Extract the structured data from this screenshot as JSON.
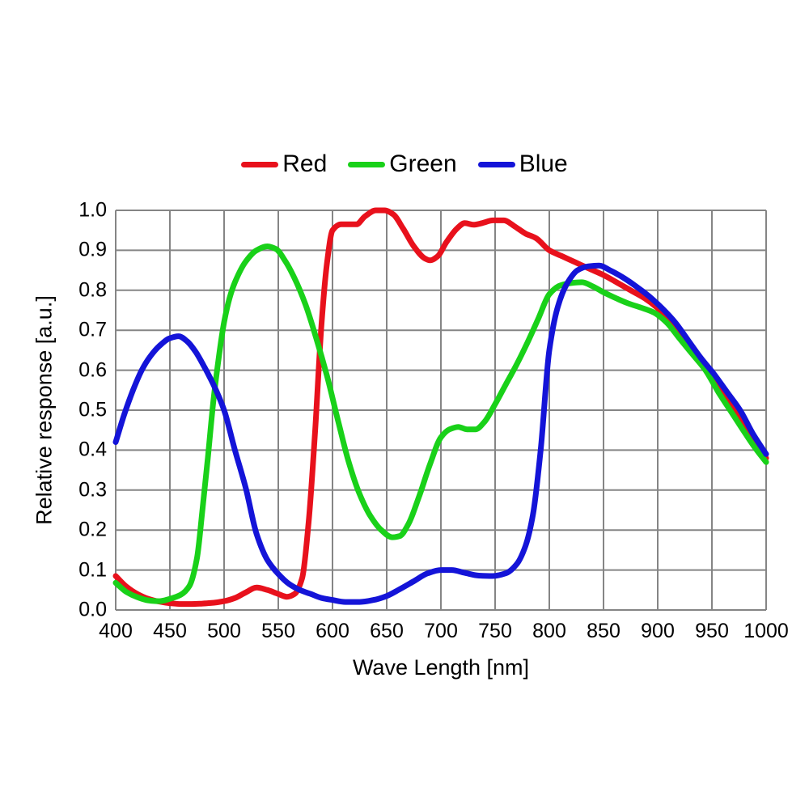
{
  "chart_data": {
    "type": "line",
    "title": "",
    "xlabel": "Wave Length [nm]",
    "ylabel": "Relative response [a.u.]",
    "xlim": [
      400,
      1000
    ],
    "ylim": [
      0.0,
      1.0
    ],
    "x_ticks": [
      400,
      450,
      500,
      550,
      600,
      650,
      700,
      750,
      800,
      850,
      900,
      950,
      1000
    ],
    "y_ticks": [
      "0.0",
      "0.1",
      "0.2",
      "0.3",
      "0.4",
      "0.5",
      "0.6",
      "0.7",
      "0.8",
      "0.9",
      "1.0"
    ],
    "grid": true,
    "grid_color": "#858585",
    "background_color": "#ffffff",
    "text_color": "#000000",
    "legend_position": "top-center",
    "series": [
      {
        "name": "Red",
        "color": "#e8111c",
        "points": [
          [
            400,
            0.085
          ],
          [
            410,
            0.058
          ],
          [
            420,
            0.04
          ],
          [
            430,
            0.028
          ],
          [
            440,
            0.021
          ],
          [
            450,
            0.017
          ],
          [
            460,
            0.015
          ],
          [
            470,
            0.015
          ],
          [
            480,
            0.016
          ],
          [
            490,
            0.018
          ],
          [
            500,
            0.022
          ],
          [
            510,
            0.03
          ],
          [
            520,
            0.044
          ],
          [
            530,
            0.056
          ],
          [
            540,
            0.05
          ],
          [
            550,
            0.04
          ],
          [
            558,
            0.033
          ],
          [
            565,
            0.04
          ],
          [
            572,
            0.08
          ],
          [
            578,
            0.22
          ],
          [
            584,
            0.45
          ],
          [
            590,
            0.72
          ],
          [
            595,
            0.87
          ],
          [
            600,
            0.95
          ],
          [
            608,
            0.965
          ],
          [
            615,
            0.965
          ],
          [
            622,
            0.965
          ],
          [
            630,
            0.985
          ],
          [
            640,
            1.0
          ],
          [
            648,
            1.0
          ],
          [
            656,
            0.99
          ],
          [
            665,
            0.955
          ],
          [
            675,
            0.91
          ],
          [
            685,
            0.88
          ],
          [
            690,
            0.875
          ],
          [
            697,
            0.885
          ],
          [
            705,
            0.92
          ],
          [
            715,
            0.955
          ],
          [
            722,
            0.968
          ],
          [
            730,
            0.964
          ],
          [
            738,
            0.968
          ],
          [
            748,
            0.975
          ],
          [
            758,
            0.975
          ],
          [
            768,
            0.96
          ],
          [
            778,
            0.942
          ],
          [
            788,
            0.93
          ],
          [
            800,
            0.9
          ],
          [
            812,
            0.885
          ],
          [
            824,
            0.87
          ],
          [
            836,
            0.855
          ],
          [
            850,
            0.838
          ],
          [
            862,
            0.82
          ],
          [
            875,
            0.8
          ],
          [
            888,
            0.78
          ],
          [
            900,
            0.755
          ],
          [
            912,
            0.72
          ],
          [
            925,
            0.675
          ],
          [
            938,
            0.625
          ],
          [
            950,
            0.585
          ],
          [
            962,
            0.54
          ],
          [
            975,
            0.49
          ],
          [
            988,
            0.43
          ],
          [
            1000,
            0.38
          ]
        ]
      },
      {
        "name": "Green",
        "color": "#19d119",
        "points": [
          [
            400,
            0.068
          ],
          [
            410,
            0.045
          ],
          [
            420,
            0.032
          ],
          [
            430,
            0.024
          ],
          [
            440,
            0.022
          ],
          [
            450,
            0.028
          ],
          [
            460,
            0.038
          ],
          [
            468,
            0.06
          ],
          [
            475,
            0.13
          ],
          [
            480,
            0.25
          ],
          [
            485,
            0.38
          ],
          [
            490,
            0.52
          ],
          [
            495,
            0.63
          ],
          [
            500,
            0.72
          ],
          [
            505,
            0.78
          ],
          [
            510,
            0.82
          ],
          [
            520,
            0.872
          ],
          [
            530,
            0.9
          ],
          [
            540,
            0.91
          ],
          [
            548,
            0.903
          ],
          [
            556,
            0.875
          ],
          [
            565,
            0.83
          ],
          [
            575,
            0.765
          ],
          [
            585,
            0.68
          ],
          [
            595,
            0.585
          ],
          [
            605,
            0.475
          ],
          [
            615,
            0.37
          ],
          [
            625,
            0.29
          ],
          [
            635,
            0.235
          ],
          [
            645,
            0.2
          ],
          [
            655,
            0.182
          ],
          [
            662,
            0.185
          ],
          [
            670,
            0.215
          ],
          [
            680,
            0.285
          ],
          [
            690,
            0.365
          ],
          [
            700,
            0.432
          ],
          [
            708,
            0.452
          ],
          [
            716,
            0.458
          ],
          [
            724,
            0.452
          ],
          [
            732,
            0.452
          ],
          [
            740,
            0.47
          ],
          [
            750,
            0.515
          ],
          [
            760,
            0.565
          ],
          [
            770,
            0.615
          ],
          [
            780,
            0.67
          ],
          [
            790,
            0.73
          ],
          [
            800,
            0.79
          ],
          [
            810,
            0.812
          ],
          [
            820,
            0.818
          ],
          [
            830,
            0.82
          ],
          [
            840,
            0.81
          ],
          [
            850,
            0.795
          ],
          [
            860,
            0.782
          ],
          [
            872,
            0.768
          ],
          [
            884,
            0.757
          ],
          [
            896,
            0.745
          ],
          [
            908,
            0.72
          ],
          [
            920,
            0.68
          ],
          [
            932,
            0.64
          ],
          [
            944,
            0.6
          ],
          [
            956,
            0.545
          ],
          [
            968,
            0.495
          ],
          [
            980,
            0.445
          ],
          [
            990,
            0.405
          ],
          [
            1000,
            0.37
          ]
        ]
      },
      {
        "name": "Blue",
        "color": "#1414d8",
        "points": [
          [
            400,
            0.42
          ],
          [
            408,
            0.49
          ],
          [
            416,
            0.55
          ],
          [
            424,
            0.6
          ],
          [
            432,
            0.635
          ],
          [
            440,
            0.66
          ],
          [
            450,
            0.68
          ],
          [
            458,
            0.685
          ],
          [
            466,
            0.672
          ],
          [
            474,
            0.645
          ],
          [
            482,
            0.607
          ],
          [
            490,
            0.565
          ],
          [
            500,
            0.5
          ],
          [
            510,
            0.4
          ],
          [
            520,
            0.305
          ],
          [
            530,
            0.19
          ],
          [
            540,
            0.125
          ],
          [
            550,
            0.09
          ],
          [
            560,
            0.065
          ],
          [
            570,
            0.05
          ],
          [
            580,
            0.04
          ],
          [
            590,
            0.03
          ],
          [
            600,
            0.025
          ],
          [
            612,
            0.02
          ],
          [
            625,
            0.02
          ],
          [
            638,
            0.025
          ],
          [
            650,
            0.035
          ],
          [
            662,
            0.052
          ],
          [
            675,
            0.072
          ],
          [
            688,
            0.092
          ],
          [
            700,
            0.1
          ],
          [
            710,
            0.1
          ],
          [
            722,
            0.093
          ],
          [
            735,
            0.086
          ],
          [
            748,
            0.085
          ],
          [
            760,
            0.092
          ],
          [
            770,
            0.115
          ],
          [
            778,
            0.16
          ],
          [
            785,
            0.24
          ],
          [
            792,
            0.4
          ],
          [
            800,
            0.65
          ],
          [
            808,
            0.76
          ],
          [
            816,
            0.815
          ],
          [
            826,
            0.85
          ],
          [
            836,
            0.86
          ],
          [
            846,
            0.862
          ],
          [
            856,
            0.85
          ],
          [
            868,
            0.832
          ],
          [
            880,
            0.81
          ],
          [
            892,
            0.785
          ],
          [
            904,
            0.755
          ],
          [
            916,
            0.72
          ],
          [
            928,
            0.675
          ],
          [
            940,
            0.63
          ],
          [
            952,
            0.59
          ],
          [
            964,
            0.545
          ],
          [
            976,
            0.5
          ],
          [
            988,
            0.44
          ],
          [
            1000,
            0.39
          ]
        ]
      }
    ]
  }
}
